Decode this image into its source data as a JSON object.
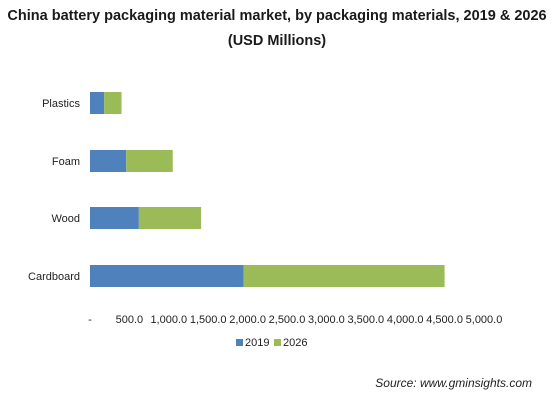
{
  "chart_data": {
    "type": "bar",
    "orientation": "horizontal",
    "stacked": true,
    "title": "China battery packaging material market, by packaging materials, 2019 & 2026",
    "subtitle": "(USD Millions)",
    "categories": [
      "Plastics",
      "Foam",
      "Wood",
      "Cardboard"
    ],
    "series": [
      {
        "name": "2019",
        "color": "#4f81bd",
        "values": [
          180,
          460,
          620,
          1950
        ]
      },
      {
        "name": "2026",
        "color": "#9bbb59",
        "values": [
          220,
          590,
          790,
          2550
        ]
      }
    ],
    "xticks": [
      "-",
      "500.0",
      "1,000.0",
      "1,500.0",
      "2,000.0",
      "2,500.0",
      "3,000.0",
      "3,500.0",
      "4,000.0",
      "4,500.0",
      "5,000.0"
    ],
    "xlim": [
      0,
      5000
    ],
    "grid": false,
    "legend_position": "bottom",
    "xlabel": "",
    "ylabel": ""
  },
  "source": "Source: www.gminsights.com"
}
